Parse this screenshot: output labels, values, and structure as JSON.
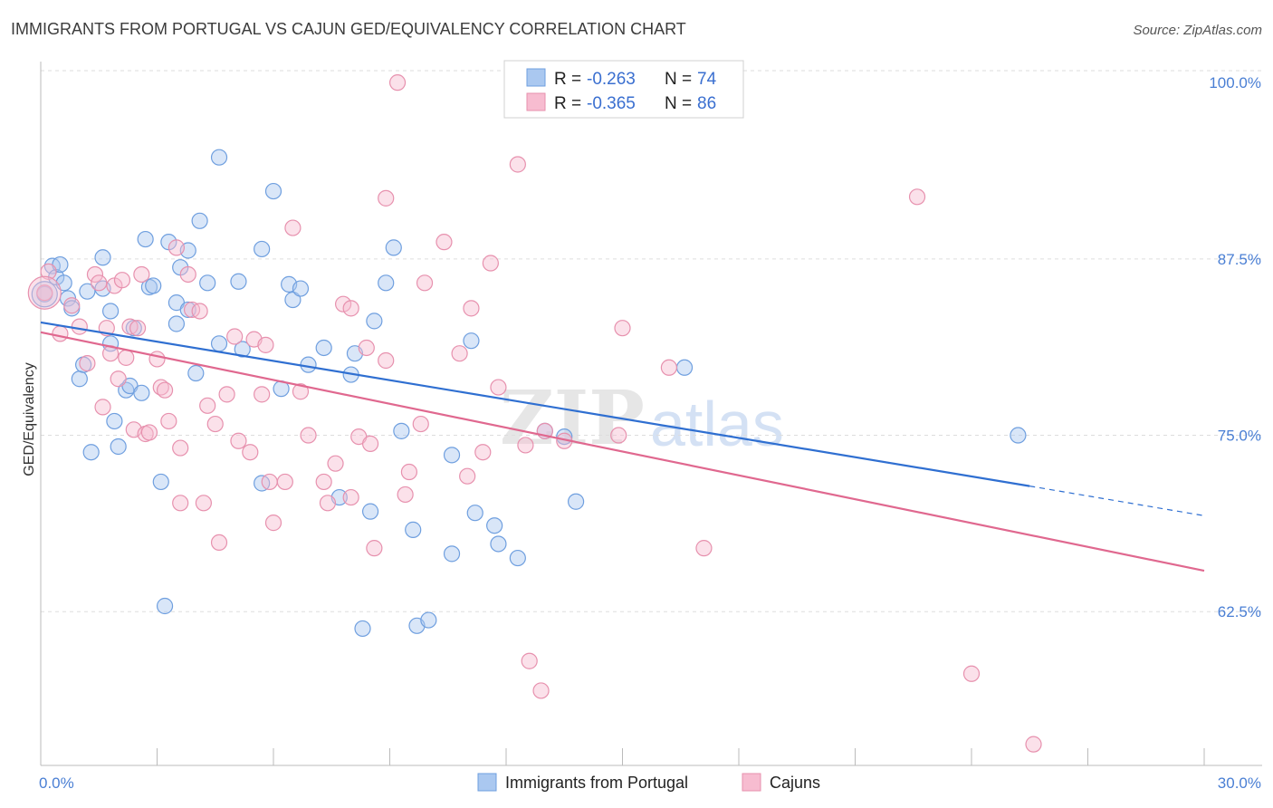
{
  "header": {
    "title": "IMMIGRANTS FROM PORTUGAL VS CAJUN GED/EQUIVALENCY CORRELATION CHART",
    "source": "Source: ZipAtlas.com"
  },
  "legend": {
    "r_label": "R =",
    "n_label": "N =",
    "series": [
      {
        "name": "Immigrants from Portugal",
        "r": "-0.263",
        "n": "74",
        "fill": "#aac8f0",
        "stroke": "#6f9fdf"
      },
      {
        "name": "Cajuns",
        "r": "-0.365",
        "n": "86",
        "fill": "#f7bcd0",
        "stroke": "#e791ae"
      }
    ]
  },
  "watermark": {
    "zip": "ZIP",
    "atlas": "atlas"
  },
  "colors": {
    "blue_point_fill": "#aac8f0",
    "blue_point_stroke": "#6f9fdf",
    "pink_point_fill": "#f7bcd0",
    "pink_point_stroke": "#e791ae",
    "blue_line": "#2f6fd1",
    "pink_line": "#e0688f",
    "tick_text": "#4a7fd4",
    "grid": "#dddddd"
  },
  "chart_data": {
    "type": "scatter",
    "title": "IMMIGRANTS FROM PORTUGAL VS CAJUN GED/EQUIVALENCY CORRELATION CHART",
    "xlabel": "",
    "ylabel": "GED/Equivalency",
    "xlim": [
      0,
      30
    ],
    "ylim": [
      51.6,
      102.0
    ],
    "x_ticks": [
      0,
      3,
      6,
      9,
      12,
      15,
      18,
      21,
      24,
      27,
      30
    ],
    "x_tick_labels": {
      "0": "0.0%",
      "30": "30.0%"
    },
    "y_ticks": [
      62.5,
      75.0,
      87.5,
      100.0
    ],
    "y_tick_labels": [
      "62.5%",
      "75.0%",
      "87.5%",
      "100.0%"
    ],
    "grid": true,
    "legend_position": "top-center",
    "series": [
      {
        "name": "Immigrants from Portugal",
        "color": "#6f9fdf",
        "trend": {
          "x": [
            0,
            25.5
          ],
          "y": [
            83.0,
            71.4
          ],
          "dashed_x": [
            25.5,
            30
          ],
          "dashed_y": [
            71.4,
            69.3
          ]
        },
        "points": [
          [
            0.1,
            85.0
          ],
          [
            0.3,
            87.0
          ],
          [
            0.4,
            86.2
          ],
          [
            0.5,
            87.1
          ],
          [
            0.6,
            85.8
          ],
          [
            0.7,
            84.7
          ],
          [
            0.8,
            84.0
          ],
          [
            1.0,
            79.0
          ],
          [
            1.1,
            80.0
          ],
          [
            1.2,
            85.2
          ],
          [
            1.3,
            73.8
          ],
          [
            1.6,
            85.4
          ],
          [
            1.6,
            87.6
          ],
          [
            1.8,
            81.5
          ],
          [
            1.8,
            83.8
          ],
          [
            1.9,
            76.0
          ],
          [
            2.0,
            74.2
          ],
          [
            2.2,
            78.2
          ],
          [
            2.3,
            78.5
          ],
          [
            2.4,
            82.6
          ],
          [
            2.6,
            78.0
          ],
          [
            2.7,
            88.9
          ],
          [
            2.8,
            85.5
          ],
          [
            2.9,
            85.6
          ],
          [
            3.1,
            71.7
          ],
          [
            3.2,
            62.9
          ],
          [
            3.3,
            88.7
          ],
          [
            3.5,
            84.4
          ],
          [
            3.5,
            82.9
          ],
          [
            3.6,
            86.9
          ],
          [
            3.8,
            88.1
          ],
          [
            3.8,
            83.9
          ],
          [
            4.0,
            79.4
          ],
          [
            4.1,
            90.2
          ],
          [
            4.3,
            85.8
          ],
          [
            4.6,
            81.5
          ],
          [
            4.6,
            94.7
          ],
          [
            5.1,
            85.9
          ],
          [
            5.2,
            81.1
          ],
          [
            5.7,
            71.6
          ],
          [
            5.7,
            88.2
          ],
          [
            6.0,
            92.3
          ],
          [
            6.2,
            78.3
          ],
          [
            6.4,
            85.7
          ],
          [
            6.5,
            84.6
          ],
          [
            6.7,
            85.4
          ],
          [
            6.9,
            80.0
          ],
          [
            7.3,
            81.2
          ],
          [
            7.7,
            70.6
          ],
          [
            8.1,
            80.8
          ],
          [
            8.0,
            79.3
          ],
          [
            8.5,
            69.6
          ],
          [
            8.6,
            83.1
          ],
          [
            8.9,
            85.8
          ],
          [
            9.1,
            88.3
          ],
          [
            9.3,
            75.3
          ],
          [
            9.6,
            68.3
          ],
          [
            9.7,
            61.5
          ],
          [
            10.0,
            61.9
          ],
          [
            10.6,
            73.6
          ],
          [
            10.6,
            66.6
          ],
          [
            11.1,
            81.7
          ],
          [
            11.2,
            69.5
          ],
          [
            11.7,
            68.6
          ],
          [
            11.8,
            67.3
          ],
          [
            12.3,
            66.3
          ],
          [
            13.0,
            75.3
          ],
          [
            13.5,
            74.9
          ],
          [
            13.8,
            70.3
          ],
          [
            14.0,
            100.1
          ],
          [
            16.4,
            100.1
          ],
          [
            16.6,
            79.8
          ],
          [
            25.2,
            75.0
          ],
          [
            8.3,
            61.3
          ]
        ]
      },
      {
        "name": "Cajuns",
        "color": "#e791ae",
        "trend": {
          "x": [
            0,
            30
          ],
          "y": [
            82.3,
            65.4
          ]
        },
        "points": [
          [
            0.1,
            85.1
          ],
          [
            0.2,
            86.6
          ],
          [
            0.5,
            82.2
          ],
          [
            0.8,
            84.2
          ],
          [
            1.0,
            82.7
          ],
          [
            1.2,
            80.1
          ],
          [
            1.4,
            86.4
          ],
          [
            1.5,
            85.8
          ],
          [
            1.6,
            77.0
          ],
          [
            1.7,
            82.6
          ],
          [
            1.8,
            80.8
          ],
          [
            1.9,
            85.6
          ],
          [
            2.0,
            79.0
          ],
          [
            2.1,
            86.0
          ],
          [
            2.2,
            80.5
          ],
          [
            2.3,
            82.7
          ],
          [
            2.4,
            75.4
          ],
          [
            2.5,
            82.6
          ],
          [
            2.6,
            86.4
          ],
          [
            2.7,
            75.1
          ],
          [
            2.8,
            75.2
          ],
          [
            3.0,
            80.4
          ],
          [
            3.1,
            78.4
          ],
          [
            3.2,
            78.2
          ],
          [
            3.3,
            76.0
          ],
          [
            3.5,
            88.3
          ],
          [
            3.6,
            74.1
          ],
          [
            3.6,
            70.2
          ],
          [
            3.8,
            86.4
          ],
          [
            3.9,
            83.9
          ],
          [
            4.1,
            83.8
          ],
          [
            4.2,
            70.2
          ],
          [
            4.3,
            77.1
          ],
          [
            4.5,
            75.8
          ],
          [
            4.6,
            67.4
          ],
          [
            4.8,
            77.9
          ],
          [
            5.0,
            82.0
          ],
          [
            5.1,
            74.6
          ],
          [
            5.4,
            73.8
          ],
          [
            5.5,
            81.8
          ],
          [
            5.7,
            77.9
          ],
          [
            5.8,
            81.4
          ],
          [
            5.9,
            71.7
          ],
          [
            6.0,
            68.8
          ],
          [
            6.3,
            71.7
          ],
          [
            6.5,
            89.7
          ],
          [
            6.7,
            78.1
          ],
          [
            6.9,
            75.0
          ],
          [
            7.3,
            71.7
          ],
          [
            7.4,
            70.2
          ],
          [
            7.6,
            73.0
          ],
          [
            7.8,
            84.3
          ],
          [
            8.0,
            84.0
          ],
          [
            8.0,
            70.6
          ],
          [
            8.2,
            74.9
          ],
          [
            8.4,
            81.2
          ],
          [
            8.5,
            74.4
          ],
          [
            8.6,
            67.0
          ],
          [
            8.9,
            91.8
          ],
          [
            8.9,
            80.3
          ],
          [
            9.2,
            100.0
          ],
          [
            9.4,
            70.8
          ],
          [
            9.5,
            72.4
          ],
          [
            9.8,
            75.8
          ],
          [
            9.9,
            85.8
          ],
          [
            10.4,
            88.7
          ],
          [
            10.8,
            80.8
          ],
          [
            11.0,
            72.1
          ],
          [
            11.1,
            84.0
          ],
          [
            11.4,
            73.8
          ],
          [
            11.6,
            87.2
          ],
          [
            11.8,
            78.4
          ],
          [
            12.3,
            94.2
          ],
          [
            12.5,
            74.3
          ],
          [
            12.6,
            59.0
          ],
          [
            12.9,
            56.9
          ],
          [
            13.0,
            75.3
          ],
          [
            13.5,
            74.6
          ],
          [
            14.0,
            100.0
          ],
          [
            14.9,
            75.0
          ],
          [
            15.0,
            82.6
          ],
          [
            16.2,
            79.8
          ],
          [
            17.1,
            67.0
          ],
          [
            22.6,
            91.9
          ],
          [
            24.0,
            58.1
          ],
          [
            25.6,
            53.1
          ]
        ]
      }
    ]
  }
}
